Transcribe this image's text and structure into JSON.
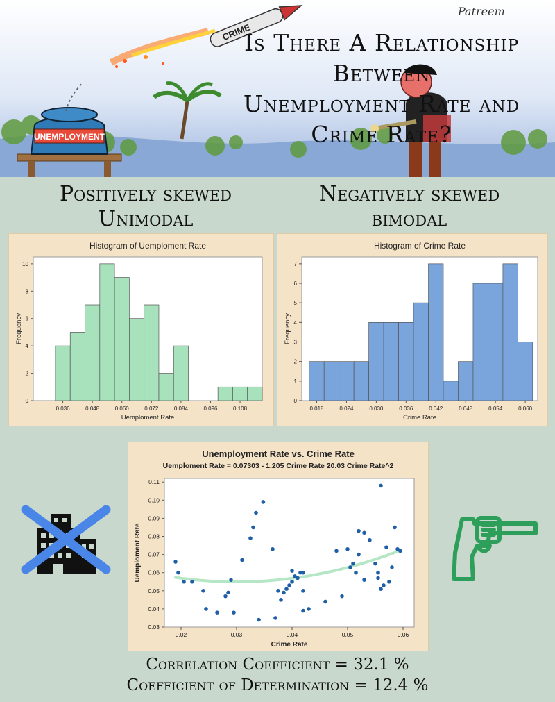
{
  "header": {
    "title_line1": "Is There A Relationship Between",
    "title_line2": "Unemployment Rate and Crime Rate?",
    "cartoon_jar_label": "UNEMPLOYMENT",
    "cartoon_rocket_label": "CRIME",
    "cartoon_signature": "Patreem"
  },
  "sections": {
    "left_desc_line1": "Positively skewed",
    "left_desc_line2": "Unimodal",
    "right_desc_line1": "Negatively skewed",
    "right_desc_line2": "bimodal"
  },
  "stats": {
    "correlation": "Correlation Coefficient  = 32.1 %",
    "determination": "Coefficient of Determination = 12.4 %"
  },
  "icons": {
    "left": "crossed-out-building-icon",
    "right": "revolver-icon",
    "cross_color": "#4a86e8",
    "gun_color": "#2e9e5b"
  },
  "chart_data": [
    {
      "type": "bar",
      "title": "Histogram of Uemploment Rate",
      "xlabel": "Uemploment Rate",
      "ylabel": "Frequency",
      "color": "#a8e2bd",
      "bin_width": 0.006,
      "bin_start": 0.033,
      "values": [
        4,
        5,
        7,
        10,
        9,
        6,
        7,
        2,
        4,
        0,
        0,
        1,
        1,
        1
      ],
      "xlim": [
        0.024,
        0.117
      ],
      "ylim": [
        0,
        10.5
      ],
      "xticks": [
        "0.036",
        "0.048",
        "0.060",
        "0.072",
        "0.084",
        "0.096",
        "0.108"
      ],
      "yticks": [
        "0",
        "2",
        "4",
        "6",
        "8",
        "10"
      ]
    },
    {
      "type": "bar",
      "title": "Histogram of Crime Rate",
      "xlabel": "Crime Rate",
      "ylabel": "Frequency",
      "color": "#7aa5dc",
      "bin_width": 0.003,
      "bin_start": 0.0165,
      "values": [
        2,
        2,
        2,
        2,
        4,
        4,
        4,
        5,
        7,
        1,
        2,
        6,
        6,
        7,
        3
      ],
      "xlim": [
        0.015,
        0.0625
      ],
      "ylim": [
        0,
        7.35
      ],
      "xticks": [
        "0.018",
        "0.024",
        "0.030",
        "0.036",
        "0.042",
        "0.048",
        "0.054",
        "0.060"
      ],
      "yticks": [
        "0",
        "1",
        "2",
        "3",
        "4",
        "5",
        "6",
        "7"
      ]
    },
    {
      "type": "scatter",
      "title": "Unemployment Rate vs. Crime Rate",
      "subtitle": "Uemploment Rate = 0.07303 - 1.205 Crime Rate  20.03 Crime Rate^2",
      "xlabel": "Crime Rate",
      "ylabel": "Uemploment Rate",
      "point_color": "#1f5fa8",
      "fit_color": "#b5e6c6",
      "fit": {
        "a": 0.07303,
        "b": -1.205,
        "c": 20.03
      },
      "xlim": [
        0.017,
        0.062
      ],
      "ylim": [
        0.03,
        0.112
      ],
      "xticks": [
        "0.02",
        "0.03",
        "0.04",
        "0.05",
        "0.06"
      ],
      "yticks": [
        "0.03",
        "0.04",
        "0.05",
        "0.06",
        "0.07",
        "0.08",
        "0.09",
        "0.10",
        "0.11"
      ],
      "points": [
        [
          0.019,
          0.066
        ],
        [
          0.0195,
          0.06
        ],
        [
          0.0205,
          0.055
        ],
        [
          0.022,
          0.055
        ],
        [
          0.024,
          0.05
        ],
        [
          0.0245,
          0.04
        ],
        [
          0.0265,
          0.038
        ],
        [
          0.028,
          0.047
        ],
        [
          0.0285,
          0.049
        ],
        [
          0.029,
          0.056
        ],
        [
          0.0295,
          0.038
        ],
        [
          0.031,
          0.067
        ],
        [
          0.0325,
          0.079
        ],
        [
          0.033,
          0.085
        ],
        [
          0.0335,
          0.093
        ],
        [
          0.034,
          0.034
        ],
        [
          0.0348,
          0.099
        ],
        [
          0.0365,
          0.073
        ],
        [
          0.037,
          0.035
        ],
        [
          0.0375,
          0.05
        ],
        [
          0.038,
          0.045
        ],
        [
          0.0385,
          0.049
        ],
        [
          0.039,
          0.051
        ],
        [
          0.0395,
          0.053
        ],
        [
          0.04,
          0.055
        ],
        [
          0.04,
          0.061
        ],
        [
          0.0405,
          0.058
        ],
        [
          0.041,
          0.057
        ],
        [
          0.0415,
          0.06
        ],
        [
          0.042,
          0.039
        ],
        [
          0.042,
          0.05
        ],
        [
          0.042,
          0.06
        ],
        [
          0.043,
          0.04
        ],
        [
          0.046,
          0.044
        ],
        [
          0.048,
          0.072
        ],
        [
          0.049,
          0.047
        ],
        [
          0.05,
          0.073
        ],
        [
          0.0505,
          0.063
        ],
        [
          0.051,
          0.065
        ],
        [
          0.0515,
          0.06
        ],
        [
          0.052,
          0.083
        ],
        [
          0.052,
          0.07
        ],
        [
          0.053,
          0.082
        ],
        [
          0.053,
          0.056
        ],
        [
          0.054,
          0.078
        ],
        [
          0.055,
          0.065
        ],
        [
          0.0555,
          0.06
        ],
        [
          0.0555,
          0.057
        ],
        [
          0.056,
          0.108
        ],
        [
          0.056,
          0.051
        ],
        [
          0.0565,
          0.053
        ],
        [
          0.057,
          0.074
        ],
        [
          0.0575,
          0.055
        ],
        [
          0.058,
          0.063
        ],
        [
          0.0585,
          0.085
        ],
        [
          0.059,
          0.073
        ],
        [
          0.0595,
          0.072
        ]
      ]
    }
  ]
}
